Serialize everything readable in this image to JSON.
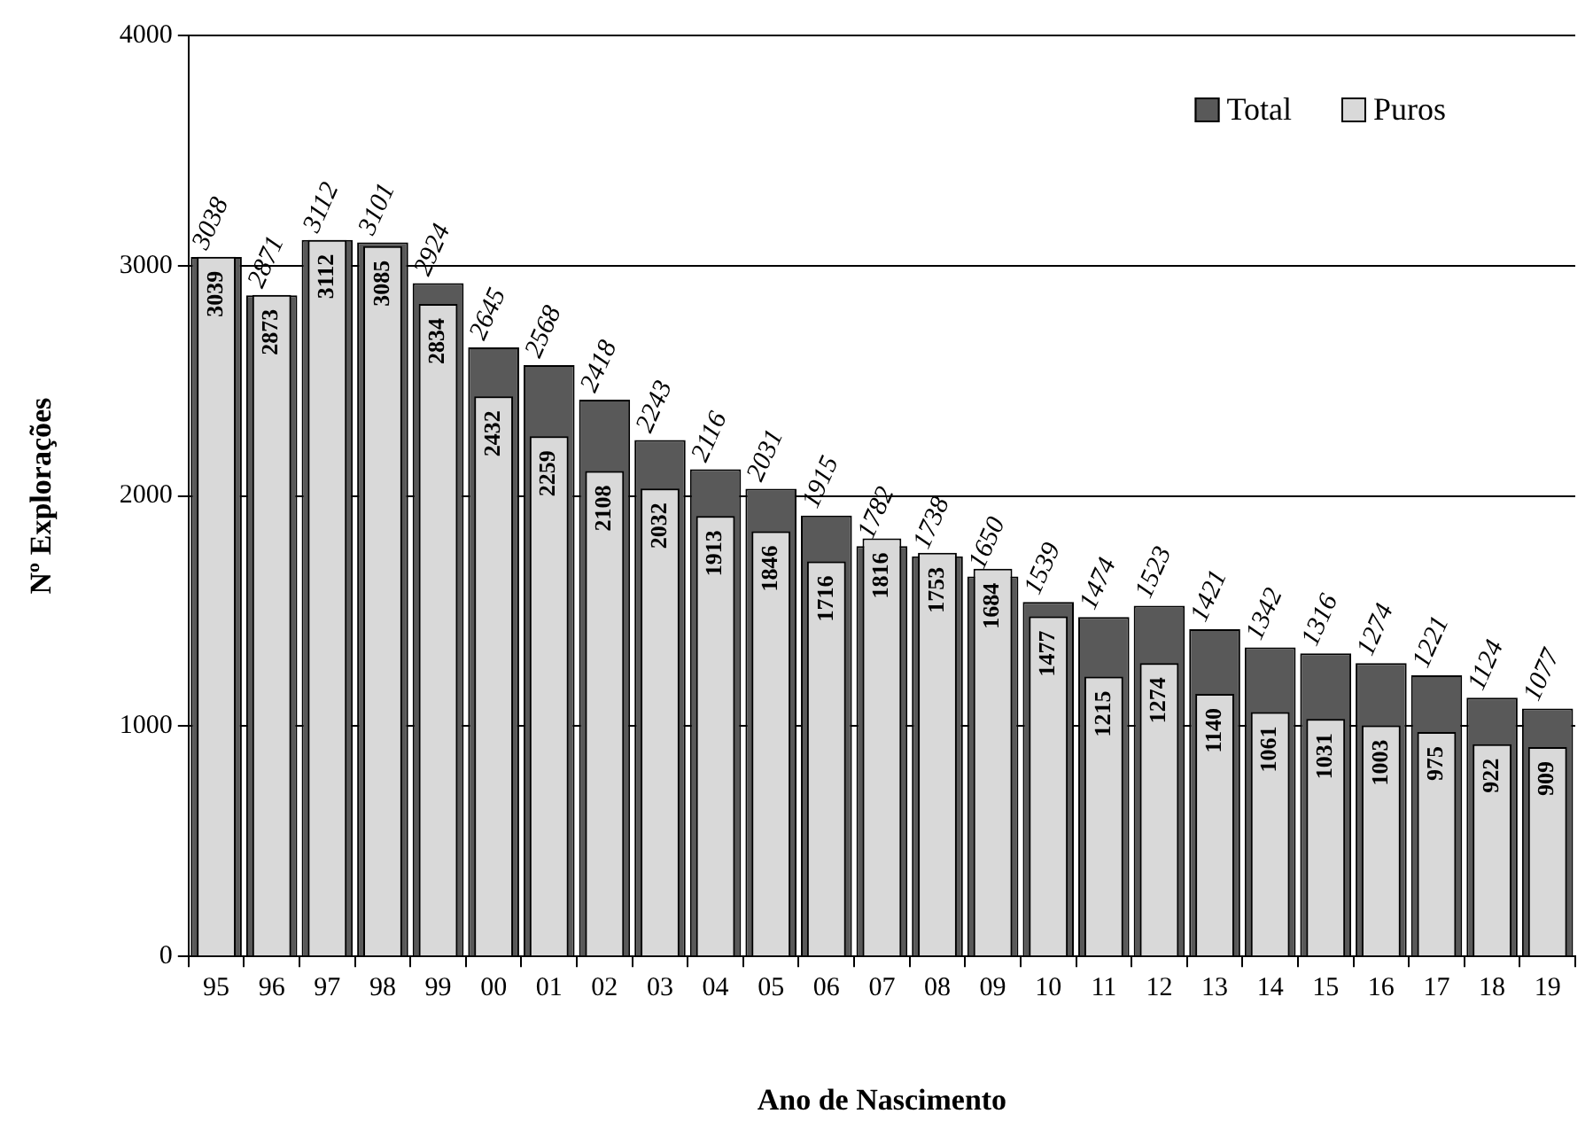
{
  "chart_data": {
    "type": "bar",
    "xlabel": "Ano de Nascimento",
    "ylabel": "Nº Explorações",
    "categories": [
      "95",
      "96",
      "97",
      "98",
      "99",
      "00",
      "01",
      "02",
      "03",
      "04",
      "05",
      "06",
      "07",
      "08",
      "09",
      "10",
      "11",
      "12",
      "13",
      "14",
      "15",
      "16",
      "17",
      "18",
      "19"
    ],
    "series": [
      {
        "name": "Total",
        "color": "#595959",
        "values": [
          3038,
          2871,
          3112,
          3101,
          2924,
          2645,
          2568,
          2418,
          2243,
          2116,
          2031,
          1915,
          1782,
          1738,
          1650,
          1539,
          1474,
          1523,
          1421,
          1342,
          1316,
          1274,
          1221,
          1124,
          1077
        ]
      },
      {
        "name": "Puros",
        "color": "#d9d9d9",
        "values": [
          3039,
          2873,
          3112,
          3085,
          2834,
          2432,
          2259,
          2108,
          2032,
          1913,
          1846,
          1716,
          1816,
          1753,
          1684,
          1477,
          1215,
          1274,
          1140,
          1061,
          1031,
          1003,
          975,
          922,
          909
        ]
      }
    ],
    "ylim": [
      0,
      4000
    ],
    "yticks": [
      0,
      1000,
      2000,
      3000,
      4000
    ],
    "grid": "y",
    "legend": "top right",
    "data_labels": true
  }
}
